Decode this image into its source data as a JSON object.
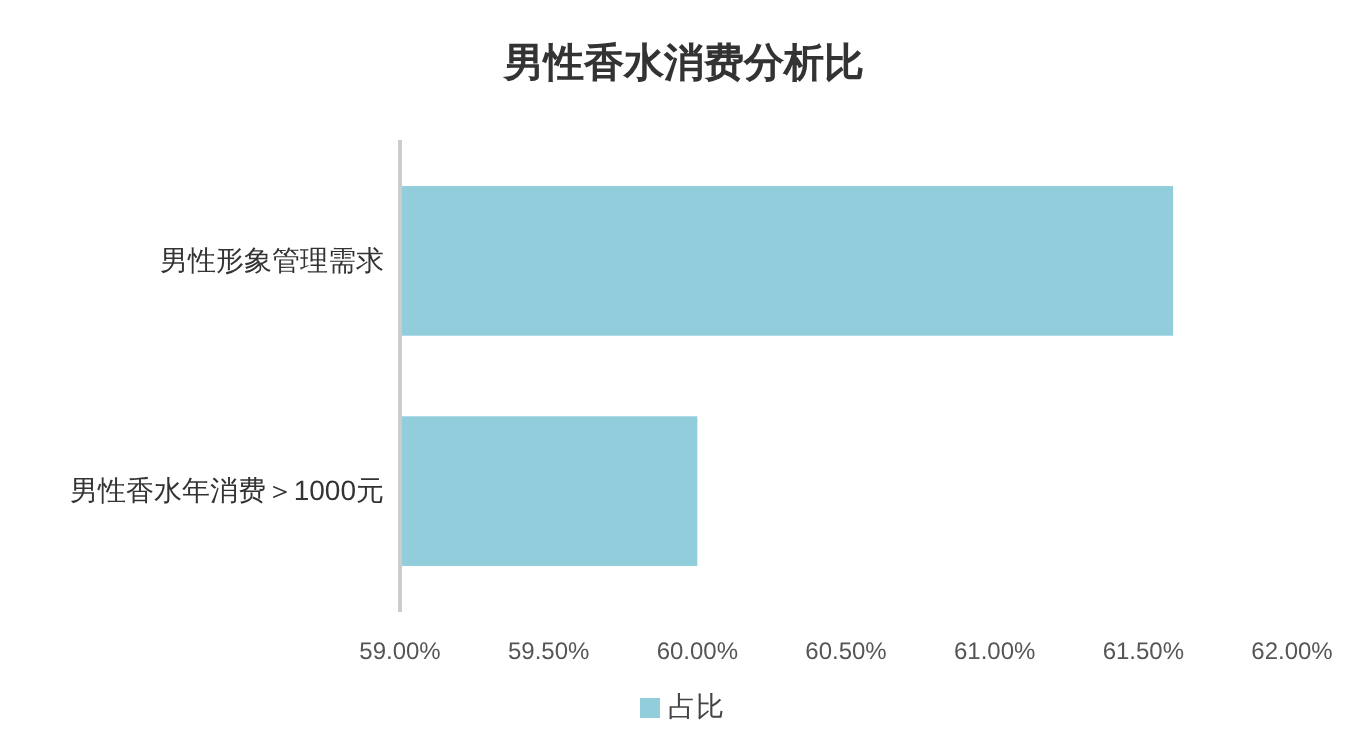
{
  "chart_data": {
    "type": "bar",
    "orientation": "horizontal",
    "title": "男性香水消费分析比",
    "categories": [
      "男性形象管理需求",
      "男性香水年消费＞1000元"
    ],
    "series": [
      {
        "name": "占比",
        "color": "#92cddc",
        "values": [
          61.6,
          60.0
        ]
      }
    ],
    "xlim": [
      59,
      62
    ],
    "xticks": [
      {
        "value": 59,
        "label": "59.00%"
      },
      {
        "value": 59.5,
        "label": "59.50%"
      },
      {
        "value": 60,
        "label": "60.00%"
      },
      {
        "value": 60.5,
        "label": "60.50%"
      },
      {
        "value": 61,
        "label": "61.00%"
      },
      {
        "value": 61.5,
        "label": "61.50%"
      },
      {
        "value": 62,
        "label": "62.00%"
      }
    ],
    "legend": "bottom",
    "grid": false
  }
}
